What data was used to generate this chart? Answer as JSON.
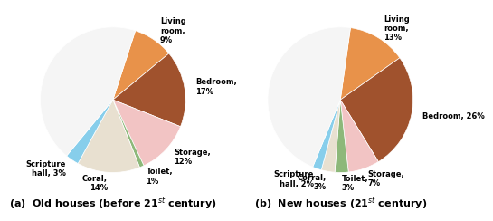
{
  "left_pie": {
    "labels": [
      "Living\nroom,\n9%",
      "Bedroom,\n17%",
      "Storage,\n12%",
      "Toilet,\n1%",
      "Coral,\n14%",
      "Scripture\nhall, 3%"
    ],
    "values": [
      9,
      17,
      12,
      1,
      14,
      3
    ],
    "colors": [
      "#E8924A",
      "#A0522D",
      "#F2C4C4",
      "#8DB87A",
      "#E8E0D0",
      "#87CEEB"
    ],
    "startangle": 72,
    "title": "(a)  Old houses (before 21$^{st}$ century)"
  },
  "right_pie": {
    "labels": [
      "Living\nroom,\n13%",
      "Bedroom, 26%",
      "Storage,\n7%",
      "Toilet,\n3%",
      "Corral,\n3%",
      "Scripture\nhall, 2%"
    ],
    "values": [
      13,
      26,
      7,
      3,
      3,
      2
    ],
    "colors": [
      "#E8924A",
      "#A0522D",
      "#F2C4C4",
      "#8DB87A",
      "#E8E0D0",
      "#87CEEB"
    ],
    "startangle": 82,
    "title": "(b)  New houses (21$^{st}$ century)"
  },
  "label_fontsize": 6.0,
  "title_fontsize": 8.0,
  "remaining_color": "#F5F5F5"
}
